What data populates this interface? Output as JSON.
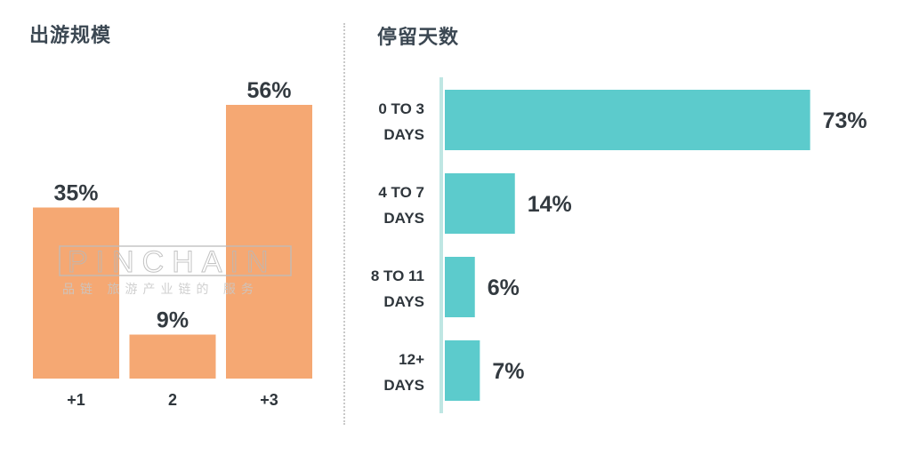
{
  "charts": {
    "left_title": "出游规模",
    "right_title": "停留天数"
  },
  "watermark": {
    "text": "PINCHAIN",
    "subtext": "品链  旅游产业链的  服务"
  },
  "chart_data": [
    {
      "type": "bar",
      "title": "出游规模",
      "categories": [
        "+1",
        "2",
        "+3"
      ],
      "values": [
        35,
        9,
        56
      ],
      "value_labels": [
        "35%",
        "9%",
        "56%"
      ],
      "ylim": [
        0,
        60
      ],
      "grid": false,
      "color": "#f5a873"
    },
    {
      "type": "bar",
      "orientation": "horizontal",
      "title": "停留天数",
      "categories": [
        [
          "0 TO 3",
          "DAYS"
        ],
        [
          "4 TO 7",
          "DAYS"
        ],
        [
          "8 TO 11",
          "DAYS"
        ],
        [
          "12+",
          "DAYS"
        ]
      ],
      "values": [
        73,
        14,
        6,
        7
      ],
      "value_labels": [
        "73%",
        "14%",
        "6%",
        "7%"
      ],
      "xlim": [
        0,
        80
      ],
      "grid": false,
      "color": "#5ccbcc",
      "axis_color": "#bfe6e3"
    }
  ]
}
